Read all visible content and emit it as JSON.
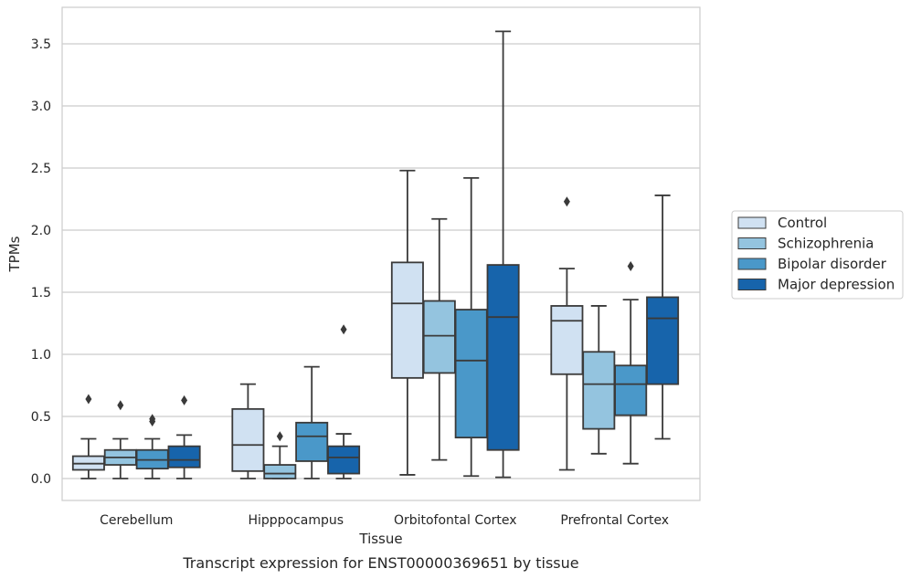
{
  "caption": "Transcript expression for ENST00000369651 by tissue",
  "chart_data": {
    "type": "boxplot",
    "title": "",
    "xlabel": "Tissue",
    "ylabel": "TPMs",
    "ylim": [
      -0.17,
      3.76
    ],
    "yticks": [
      "0.0",
      "0.5",
      "1.0",
      "1.5",
      "2.0",
      "2.5",
      "3.0",
      "3.5"
    ],
    "grid": "horizontal",
    "legend_position": "right",
    "categories": [
      "Cerebellum",
      "Hipppocampus",
      "Orbitofontal Cortex",
      "Prefrontal Cortex"
    ],
    "series": [
      {
        "name": "Control",
        "color": "#d0e1f2",
        "boxes": [
          {
            "whisker_low": 0.0,
            "q1": 0.07,
            "median": 0.12,
            "q3": 0.18,
            "whisker_high": 0.32,
            "outliers": [
              0.64
            ]
          },
          {
            "whisker_low": 0.0,
            "q1": 0.06,
            "median": 0.27,
            "q3": 0.56,
            "whisker_high": 0.76,
            "outliers": []
          },
          {
            "whisker_low": 0.03,
            "q1": 0.81,
            "median": 1.41,
            "q3": 1.74,
            "whisker_high": 2.48,
            "outliers": []
          },
          {
            "whisker_low": 0.07,
            "q1": 0.84,
            "median": 1.27,
            "q3": 1.39,
            "whisker_high": 1.69,
            "outliers": [
              2.23
            ]
          }
        ]
      },
      {
        "name": "Schizophrenia",
        "color": "#94c4df",
        "boxes": [
          {
            "whisker_low": 0.0,
            "q1": 0.11,
            "median": 0.17,
            "q3": 0.23,
            "whisker_high": 0.32,
            "outliers": [
              0.59
            ]
          },
          {
            "whisker_low": 0.0,
            "q1": 0.0,
            "median": 0.04,
            "q3": 0.11,
            "whisker_high": 0.26,
            "outliers": [
              0.34
            ]
          },
          {
            "whisker_low": 0.15,
            "q1": 0.85,
            "median": 1.15,
            "q3": 1.43,
            "whisker_high": 2.09,
            "outliers": []
          },
          {
            "whisker_low": 0.2,
            "q1": 0.4,
            "median": 0.76,
            "q3": 1.02,
            "whisker_high": 1.39,
            "outliers": []
          }
        ]
      },
      {
        "name": "Bipolar disorder",
        "color": "#4a98c9",
        "boxes": [
          {
            "whisker_low": 0.0,
            "q1": 0.08,
            "median": 0.15,
            "q3": 0.23,
            "whisker_high": 0.32,
            "outliers": [
              0.46,
              0.48
            ]
          },
          {
            "whisker_low": 0.0,
            "q1": 0.14,
            "median": 0.34,
            "q3": 0.45,
            "whisker_high": 0.9,
            "outliers": []
          },
          {
            "whisker_low": 0.02,
            "q1": 0.33,
            "median": 0.95,
            "q3": 1.36,
            "whisker_high": 2.42,
            "outliers": []
          },
          {
            "whisker_low": 0.12,
            "q1": 0.51,
            "median": 0.76,
            "q3": 0.91,
            "whisker_high": 1.44,
            "outliers": [
              1.71
            ]
          }
        ]
      },
      {
        "name": "Major depression",
        "color": "#1764ab",
        "boxes": [
          {
            "whisker_low": 0.0,
            "q1": 0.09,
            "median": 0.15,
            "q3": 0.26,
            "whisker_high": 0.35,
            "outliers": [
              0.63
            ]
          },
          {
            "whisker_low": 0.0,
            "q1": 0.04,
            "median": 0.17,
            "q3": 0.26,
            "whisker_high": 0.36,
            "outliers": [
              1.2
            ]
          },
          {
            "whisker_low": 0.01,
            "q1": 0.23,
            "median": 1.3,
            "q3": 1.72,
            "whisker_high": 3.6,
            "outliers": []
          },
          {
            "whisker_low": 0.32,
            "q1": 0.76,
            "median": 1.29,
            "q3": 1.46,
            "whisker_high": 2.28,
            "outliers": []
          }
        ]
      }
    ]
  }
}
